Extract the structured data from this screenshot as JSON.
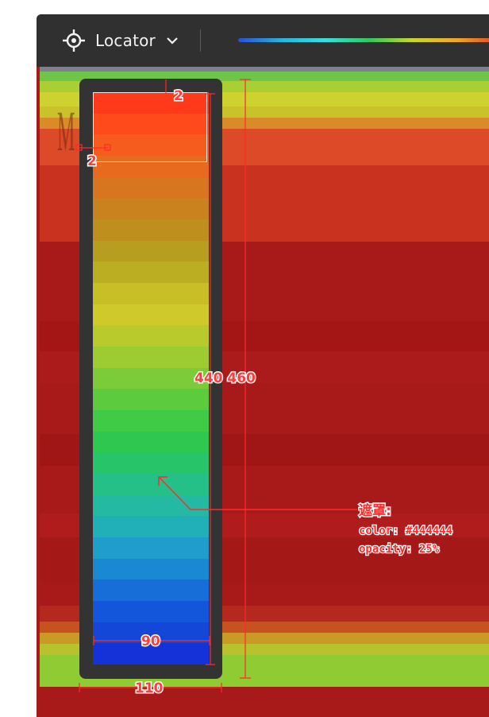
{
  "toolbar": {
    "locator_label": "Locator",
    "legend_colors": [
      "#2a4fd6",
      "#27b5e0",
      "#36e0e0",
      "#2fc95a",
      "#c8d82a",
      "#f2a722",
      "#e0412a"
    ]
  },
  "annotations": {
    "inner_top": "2",
    "inner_left": "2",
    "inner_height_and_outer_height": "440 460",
    "inner_width": "90",
    "outer_width": "110",
    "mask_title": "遮罩:",
    "mask_color": "color: #444444",
    "mask_opacity": "opacity: 25%"
  },
  "gradient_column": {
    "top_color": "#ff3a1a",
    "bottom_color": "#1432d8",
    "steps": [
      "#ff3a1a",
      "#ff4b1c",
      "#f65c1e",
      "#e86a1f",
      "#d8761f",
      "#c9821e",
      "#be8f1d",
      "#b89e1e",
      "#bcae22",
      "#c8bf27",
      "#cfc92a",
      "#b9cb2c",
      "#9ccb32",
      "#7ccb38",
      "#5ccb3e",
      "#3fcb46",
      "#2ec74f",
      "#27c46a",
      "#25c088",
      "#23b9a3",
      "#22b0b8",
      "#1f9ecb",
      "#1b88d4",
      "#176ed9",
      "#1456db",
      "#1446d8",
      "#1432d8"
    ]
  },
  "heatmap": {
    "bands": [
      {
        "color": "#7f7f8f",
        "h": 6
      },
      {
        "color": "#6ec54a",
        "h": 12
      },
      {
        "color": "#a9cf35",
        "h": 14
      },
      {
        "color": "#cdd22f",
        "h": 18
      },
      {
        "color": "#c9c22b",
        "h": 14
      },
      {
        "color": "#db8a2a",
        "h": 14
      },
      {
        "color": "#dc4a27",
        "h": 46
      },
      {
        "color": "#c8321f",
        "h": 96
      },
      {
        "color": "#a81919",
        "h": 100
      },
      {
        "color": "#a41616",
        "h": 38
      },
      {
        "color": "#ab1b1b",
        "h": 40
      },
      {
        "color": "#a81919",
        "h": 64
      },
      {
        "color": "#a01515",
        "h": 40
      },
      {
        "color": "#a81919",
        "h": 60
      },
      {
        "color": "#b01c1c",
        "h": 30
      },
      {
        "color": "#a51818",
        "h": 56
      },
      {
        "color": "#a81919",
        "h": 30
      },
      {
        "color": "#b5281d",
        "h": 20
      },
      {
        "color": "#c5521f",
        "h": 14
      },
      {
        "color": "#c99a25",
        "h": 14
      },
      {
        "color": "#b7c22c",
        "h": 14
      },
      {
        "color": "#8fcb32",
        "h": 40
      }
    ]
  }
}
